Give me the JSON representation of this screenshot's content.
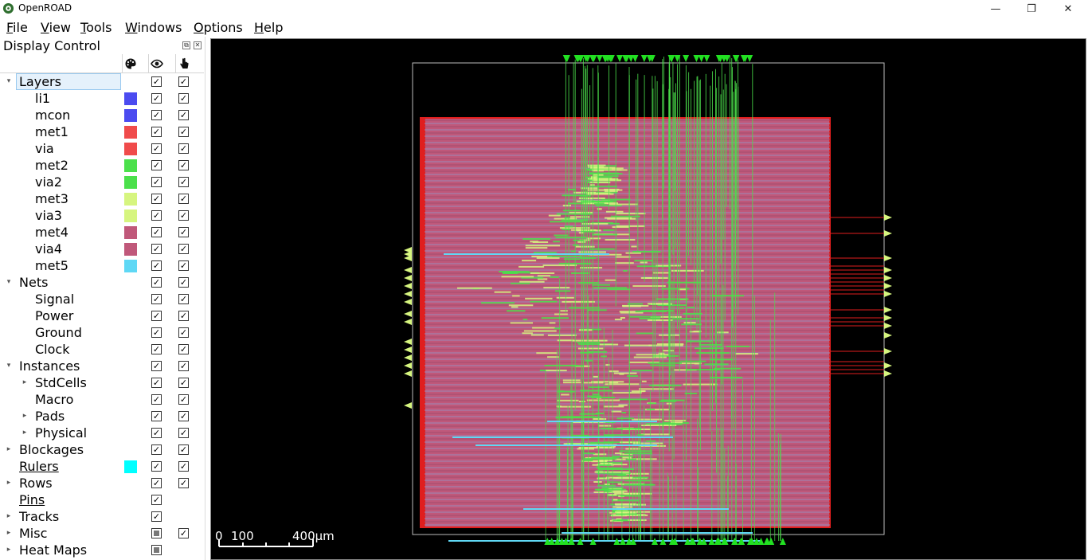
{
  "window": {
    "title": "OpenROAD",
    "minimize": "—",
    "maximize": "❐",
    "close": "✕"
  },
  "menu": [
    {
      "label": "File",
      "mnemonic": "F"
    },
    {
      "label": "View",
      "mnemonic": "V"
    },
    {
      "label": "Tools",
      "mnemonic": "T"
    },
    {
      "label": "Windows",
      "mnemonic": "W"
    },
    {
      "label": "Options",
      "mnemonic": "O"
    },
    {
      "label": "Help",
      "mnemonic": "H"
    }
  ],
  "display_control": {
    "title": "Display Control",
    "header_icons": [
      "palette-icon",
      "eye-icon",
      "pointer-hand-icon"
    ],
    "rows": [
      {
        "label": "Layers",
        "level": 0,
        "expander": "down",
        "vis": "checked",
        "sel": "checked",
        "selected": true
      },
      {
        "label": "li1",
        "level": 1,
        "color": "#4b4bf0",
        "vis": "checked",
        "sel": "checked"
      },
      {
        "label": "mcon",
        "level": 1,
        "color": "#4b4bf0",
        "vis": "checked",
        "sel": "checked"
      },
      {
        "label": "met1",
        "level": 1,
        "color": "#f04b4b",
        "vis": "checked",
        "sel": "checked"
      },
      {
        "label": "via",
        "level": 1,
        "color": "#f04b4b",
        "vis": "checked",
        "sel": "checked"
      },
      {
        "label": "met2",
        "level": 1,
        "color": "#4be04b",
        "vis": "checked",
        "sel": "checked"
      },
      {
        "label": "via2",
        "level": 1,
        "color": "#4be04b",
        "vis": "checked",
        "sel": "checked"
      },
      {
        "label": "met3",
        "level": 1,
        "color": "#d6f57f",
        "vis": "checked",
        "sel": "checked"
      },
      {
        "label": "via3",
        "level": 1,
        "color": "#d6f57f",
        "vis": "checked",
        "sel": "checked"
      },
      {
        "label": "met4",
        "level": 1,
        "color": "#c0587a",
        "vis": "checked",
        "sel": "checked"
      },
      {
        "label": "via4",
        "level": 1,
        "color": "#c0587a",
        "vis": "checked",
        "sel": "checked"
      },
      {
        "label": "met5",
        "level": 1,
        "color": "#5fd8f5",
        "vis": "checked",
        "sel": "checked"
      },
      {
        "label": "Nets",
        "level": 0,
        "expander": "down",
        "vis": "checked",
        "sel": "checked"
      },
      {
        "label": "Signal",
        "level": 1,
        "vis": "checked",
        "sel": "checked"
      },
      {
        "label": "Power",
        "level": 1,
        "vis": "checked",
        "sel": "checked"
      },
      {
        "label": "Ground",
        "level": 1,
        "vis": "checked",
        "sel": "checked"
      },
      {
        "label": "Clock",
        "level": 1,
        "vis": "checked",
        "sel": "checked"
      },
      {
        "label": "Instances",
        "level": 0,
        "expander": "down",
        "vis": "checked",
        "sel": "checked"
      },
      {
        "label": "StdCells",
        "level": 1,
        "expander": "right",
        "vis": "checked",
        "sel": "checked"
      },
      {
        "label": "Macro",
        "level": 1,
        "vis": "checked",
        "sel": "checked"
      },
      {
        "label": "Pads",
        "level": 1,
        "expander": "right",
        "vis": "checked",
        "sel": "checked"
      },
      {
        "label": "Physical",
        "level": 1,
        "expander": "right",
        "vis": "checked",
        "sel": "checked"
      },
      {
        "label": "Blockages",
        "level": 0,
        "expander": "right",
        "vis": "checked",
        "sel": "checked"
      },
      {
        "label": "Rulers",
        "level": 0,
        "link": true,
        "color": "#00ffff",
        "vis": "checked",
        "sel": "checked"
      },
      {
        "label": "Rows",
        "level": 0,
        "expander": "right",
        "vis": "checked",
        "sel": "checked"
      },
      {
        "label": "Pins",
        "level": 0,
        "link": true,
        "vis": "checked"
      },
      {
        "label": "Tracks",
        "level": 0,
        "expander": "right",
        "vis": "checked"
      },
      {
        "label": "Misc",
        "level": 0,
        "expander": "right",
        "vis": "partial",
        "sel": "checked"
      },
      {
        "label": "Heat Maps",
        "level": 0,
        "expander": "right",
        "vis": "partial"
      }
    ]
  },
  "layout": {
    "scale_bar": {
      "labels": [
        "0",
        "100",
        "400µm"
      ]
    },
    "colors": {
      "core_fill": "#c0587a",
      "core_border": "#e01e1e",
      "met2": "#4be04b",
      "met3": "#d6f57f",
      "met5": "#5fd8f5",
      "die": "#bdbdbd"
    }
  }
}
